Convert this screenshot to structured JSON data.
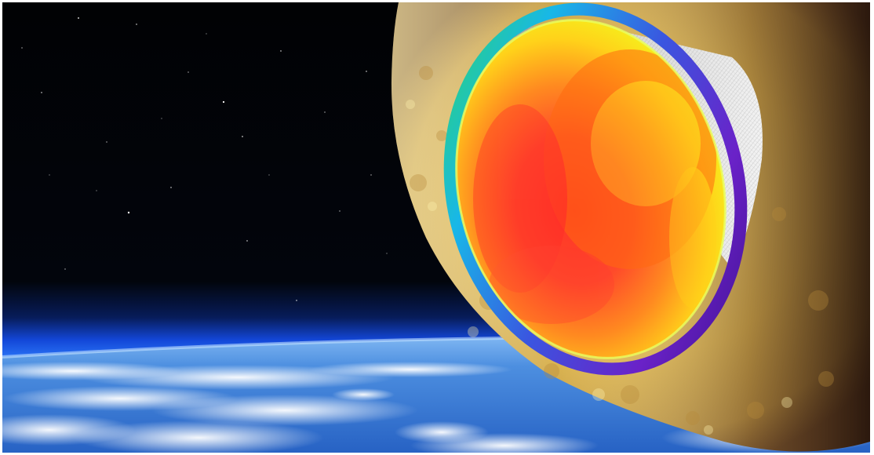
{
  "scene": {
    "subject": "capsule-reentry-visualization",
    "colors": {
      "space": "#020306",
      "atmosphere_glow": "#1a6cff",
      "earth_blue": "#2f7fd8",
      "cloud": "#f4f7fb",
      "plasma_sheath": "#e9c45a",
      "heat_hot": "#ff3a2a",
      "heat_warm": "#ffb21c",
      "heat_cool": "#f2f21a",
      "rim_violet": "#5a1fb8",
      "rim_green": "#23d65a",
      "capsule_mesh": "#c8c8c8"
    },
    "icons": [
      "star-field",
      "earth-horizon",
      "plasma-sheath",
      "heat-shield",
      "capsule-backshell"
    ]
  }
}
